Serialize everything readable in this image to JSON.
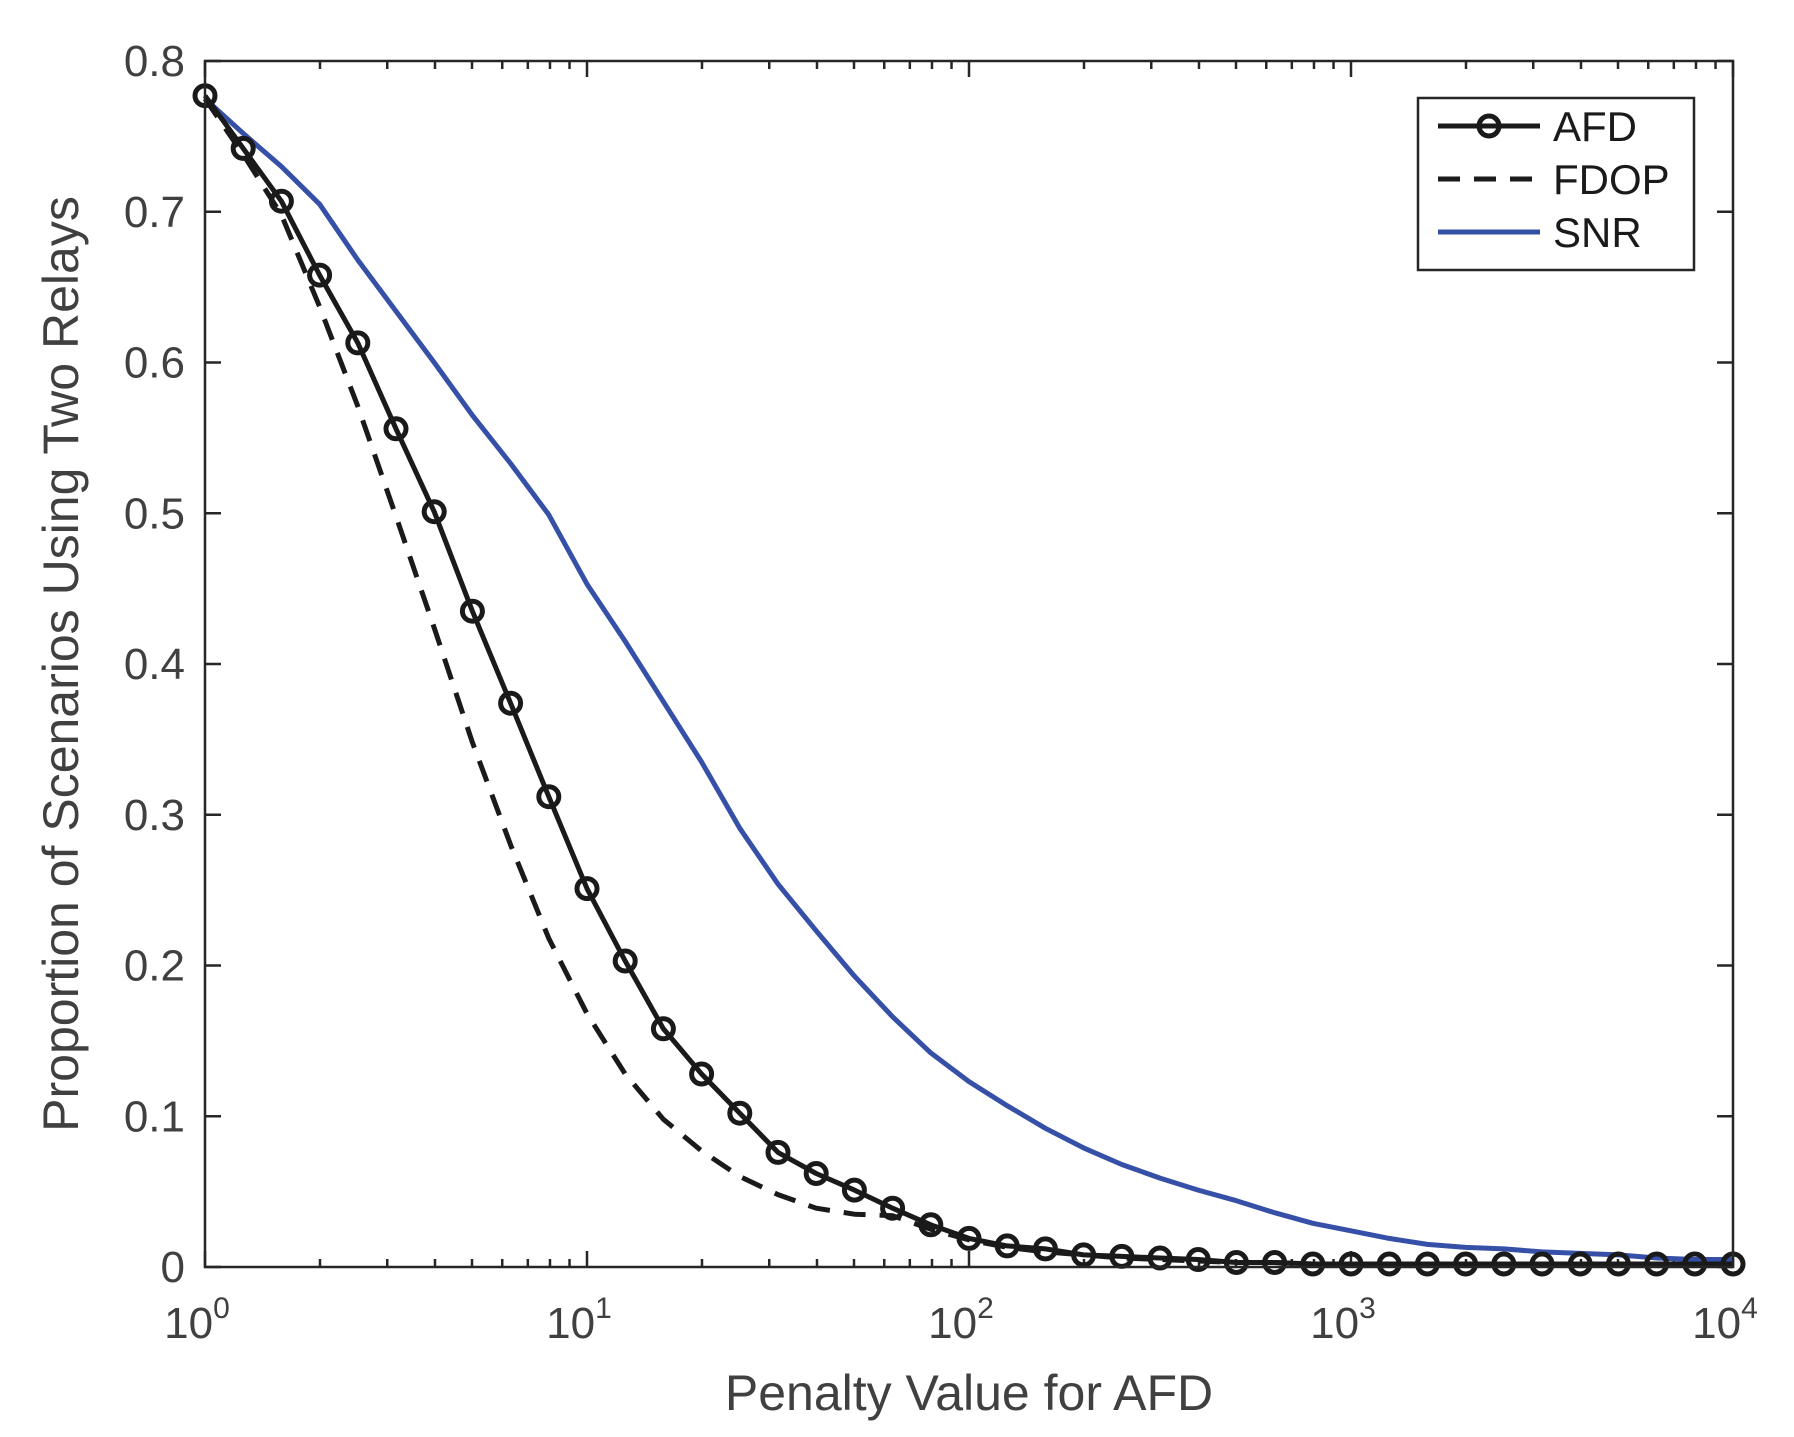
{
  "chart_data": {
    "type": "line",
    "xscale": "log",
    "xlabel": "Penalty Value for AFD",
    "ylabel": "Proportion of Scenarios Using Two Relays",
    "xlim": [
      1,
      10000
    ],
    "ylim": [
      0,
      0.8
    ],
    "x_ticks": [
      {
        "value": 1,
        "base": "10",
        "exp": "0"
      },
      {
        "value": 10,
        "base": "10",
        "exp": "1"
      },
      {
        "value": 100,
        "base": "10",
        "exp": "2"
      },
      {
        "value": 1000,
        "base": "10",
        "exp": "3"
      },
      {
        "value": 10000,
        "base": "10",
        "exp": "4"
      }
    ],
    "y_ticks": [
      {
        "value": 0,
        "label": "0"
      },
      {
        "value": 0.1,
        "label": "0.1"
      },
      {
        "value": 0.2,
        "label": "0.2"
      },
      {
        "value": 0.3,
        "label": "0.3"
      },
      {
        "value": 0.4,
        "label": "0.4"
      },
      {
        "value": 0.5,
        "label": "0.5"
      },
      {
        "value": 0.6,
        "label": "0.6"
      },
      {
        "value": 0.7,
        "label": "0.7"
      },
      {
        "value": 0.8,
        "label": "0.8"
      }
    ],
    "legend_position": "top-right",
    "series": [
      {
        "name": "AFD",
        "color": "#1a1a1a",
        "style": "solid-markers",
        "x": [
          1,
          1.259,
          1.585,
          1.995,
          2.512,
          3.162,
          3.981,
          5.012,
          6.31,
          7.943,
          10,
          12.59,
          15.85,
          19.95,
          25.12,
          31.62,
          39.81,
          50.12,
          63.1,
          79.43,
          100,
          125.9,
          158.5,
          199.5,
          251.2,
          316.2,
          398.1,
          501.2,
          631,
          794.3,
          1000,
          1259,
          1585,
          1995,
          2512,
          3162,
          3981,
          5012,
          6310,
          7943,
          10000
        ],
        "y": [
          0.777,
          0.742,
          0.707,
          0.658,
          0.613,
          0.556,
          0.501,
          0.435,
          0.374,
          0.312,
          0.251,
          0.203,
          0.158,
          0.128,
          0.102,
          0.076,
          0.062,
          0.051,
          0.039,
          0.028,
          0.019,
          0.014,
          0.012,
          0.008,
          0.007,
          0.006,
          0.005,
          0.003,
          0.003,
          0.002,
          0.002,
          0.002,
          0.002,
          0.002,
          0.002,
          0.002,
          0.002,
          0.002,
          0.002,
          0.002,
          0.002
        ]
      },
      {
        "name": "FDOP",
        "color": "#1a1a1a",
        "style": "dashed",
        "x": [
          1,
          1.259,
          1.585,
          1.995,
          2.512,
          3.162,
          3.981,
          5.012,
          6.31,
          7.943,
          10,
          12.59,
          15.85,
          19.95,
          25.12,
          31.62,
          39.81,
          50.12,
          63.1,
          79.43,
          100,
          125.9,
          158.5,
          199.5,
          251.2,
          316.2,
          398.1,
          501.2,
          631,
          794.3,
          1000
        ],
        "y": [
          0.775,
          0.738,
          0.698,
          0.637,
          0.571,
          0.498,
          0.424,
          0.348,
          0.28,
          0.218,
          0.168,
          0.128,
          0.098,
          0.077,
          0.06,
          0.048,
          0.039,
          0.035,
          0.034,
          0.025,
          0.018,
          0.013,
          0.01,
          0.008,
          0.006,
          0.005,
          0.004,
          0.003,
          0.003,
          0.002,
          0.002
        ]
      },
      {
        "name": "SNR",
        "color": "#3650a8",
        "style": "solid",
        "x": [
          1,
          1.259,
          1.585,
          1.995,
          2.512,
          3.162,
          3.981,
          5.012,
          6.31,
          7.943,
          10,
          12.59,
          15.85,
          19.95,
          25.12,
          31.62,
          39.81,
          50.12,
          63.1,
          79.43,
          100,
          125.9,
          158.5,
          199.5,
          251.2,
          316.2,
          398.1,
          501.2,
          631,
          794.3,
          1000,
          1259,
          1585,
          1995,
          2512,
          3162,
          3981,
          5012,
          6310,
          7943,
          10000
        ],
        "y": [
          0.775,
          0.752,
          0.73,
          0.705,
          0.668,
          0.634,
          0.6,
          0.565,
          0.533,
          0.499,
          0.453,
          0.415,
          0.375,
          0.335,
          0.291,
          0.254,
          0.223,
          0.193,
          0.166,
          0.142,
          0.123,
          0.107,
          0.092,
          0.079,
          0.068,
          0.059,
          0.051,
          0.044,
          0.036,
          0.029,
          0.024,
          0.019,
          0.015,
          0.013,
          0.012,
          0.01,
          0.009,
          0.008,
          0.006,
          0.005,
          0.005
        ]
      }
    ]
  }
}
